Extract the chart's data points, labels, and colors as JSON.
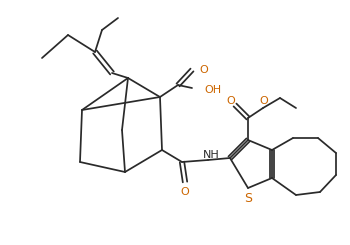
{
  "background_color": "#ffffff",
  "line_color": "#2a2a2a",
  "atom_colors": {
    "O": "#cc6600",
    "S": "#cc6600",
    "N": "#2a2a2a"
  },
  "figsize": [
    3.5,
    2.45
  ],
  "dpi": 100
}
